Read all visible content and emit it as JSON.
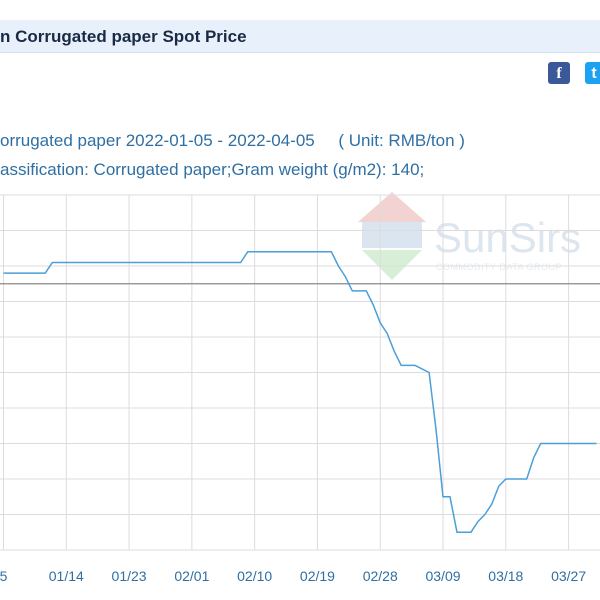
{
  "header": {
    "title": "n Corrugated paper Spot Price"
  },
  "share": {
    "facebook_icon": "facebook-icon",
    "twitter_icon": "twitter-icon",
    "facebook_glyph": "f",
    "twitter_glyph": "t"
  },
  "chart_info": {
    "heading_series": "orrugated paper",
    "heading_range": "2022-01-05 - 2022-04-05",
    "heading_unit": "( Unit: RMB/ton )",
    "classification": "assification: Corrugated paper;Gram weight (g/m2): 140;"
  },
  "watermark": {
    "text": "SunSirs",
    "subtext": "COMMODITY DATA GROUP"
  },
  "colors": {
    "line": "#4a9fd8",
    "grid": "#dcdcdc",
    "axis_text": "#2f6fa3",
    "average_line": "#888888",
    "title_bar": "#e8f1fb"
  },
  "chart_data": {
    "type": "line",
    "title": "",
    "xlabel": "",
    "ylabel": "",
    "unit": "RMB/ton",
    "x_tick_labels": [
      "5",
      "01/14",
      "01/23",
      "02/01",
      "02/10",
      "02/19",
      "02/28",
      "03/09",
      "03/18",
      "03/27"
    ],
    "x_tick_days": [
      0,
      9,
      18,
      27,
      36,
      45,
      54,
      63,
      72,
      81
    ],
    "xlim": [
      -0.5,
      85.5
    ],
    "ylim": [
      0,
      10
    ],
    "grid": true,
    "relative_level_note": "no y tick labels visible; values are relative levels",
    "average_level": 7.5,
    "series": [
      {
        "name": "",
        "x": [
          0,
          6,
          7,
          34,
          35,
          47,
          48,
          49,
          50,
          52,
          53,
          54,
          55,
          56,
          57,
          58,
          59,
          61,
          62,
          63,
          64,
          65,
          66,
          67,
          68,
          69,
          70,
          71,
          72,
          73,
          74,
          75,
          76,
          77,
          78,
          79,
          80,
          81,
          82,
          83,
          84,
          85
        ],
        "y": [
          7.8,
          7.8,
          8.1,
          8.1,
          8.4,
          8.4,
          8.0,
          7.7,
          7.3,
          7.3,
          6.9,
          6.4,
          6.1,
          5.6,
          5.2,
          5.2,
          5.2,
          5.0,
          3.4,
          1.5,
          1.5,
          0.5,
          0.5,
          0.5,
          0.8,
          1.0,
          1.3,
          1.8,
          2.0,
          2.0,
          2.0,
          2.0,
          2.6,
          3.0,
          3.0,
          3.0,
          3.0,
          3.0,
          3.0,
          3.0,
          3.0,
          3.0
        ]
      }
    ]
  }
}
